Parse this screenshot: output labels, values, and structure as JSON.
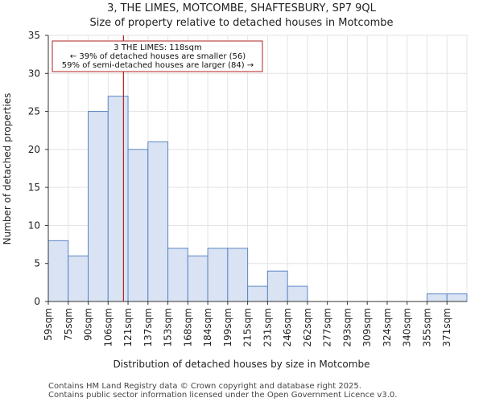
{
  "chart_data": {
    "type": "bar",
    "title": "3, THE LIMES, MOTCOMBE, SHAFTESBURY, SP7 9QL",
    "subtitle": "Size of property relative to detached houses in Motcombe",
    "xlabel": "Distribution of detached houses by size in Motcombe",
    "ylabel": "Number of detached properties",
    "categories": [
      "59sqm",
      "75sqm",
      "90sqm",
      "106sqm",
      "121sqm",
      "137sqm",
      "153sqm",
      "168sqm",
      "184sqm",
      "199sqm",
      "215sqm",
      "231sqm",
      "246sqm",
      "262sqm",
      "277sqm",
      "293sqm",
      "309sqm",
      "324sqm",
      "340sqm",
      "355sqm",
      "371sqm"
    ],
    "values": [
      8,
      6,
      25,
      27,
      20,
      21,
      7,
      6,
      7,
      7,
      2,
      4,
      2,
      0,
      0,
      0,
      0,
      0,
      0,
      1,
      1
    ],
    "ylim": [
      0,
      35
    ],
    "yticks": [
      0,
      5,
      10,
      15,
      20,
      25,
      30,
      35
    ],
    "grid": true,
    "marker": {
      "bin_position": 3.77,
      "color": "#b22222"
    },
    "annotation": {
      "line1": "3 THE LIMES: 118sqm",
      "line2": "← 39% of detached houses are smaller (56)",
      "line3": "59% of semi-detached houses are larger (84) →"
    },
    "bar_fill": "#dae3f3",
    "bar_stroke": "#5b86c5"
  },
  "footer": {
    "line1": "Contains HM Land Registry data © Crown copyright and database right 2025.",
    "line2": "Contains public sector information licensed under the Open Government Licence v3.0."
  }
}
